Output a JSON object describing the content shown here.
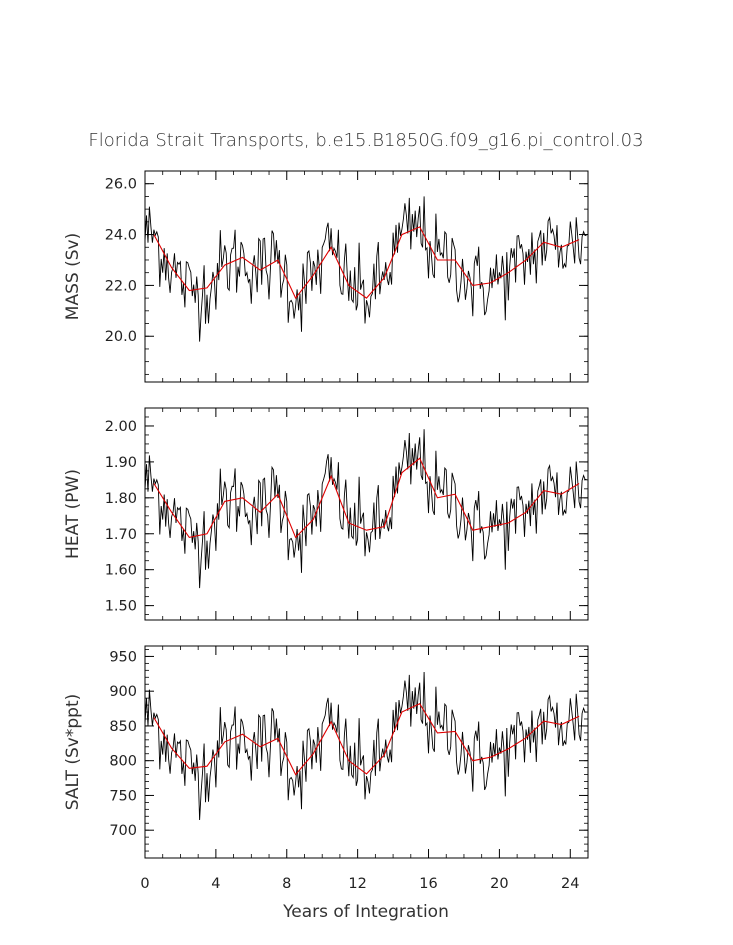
{
  "chart_data": {
    "type": "line",
    "title": "Florida Strait Transports, b.e15.B1850G.f09_g16.pi_control.03",
    "xlabel": "Years of Integration",
    "xlim": [
      0,
      25
    ],
    "xticks": [
      0,
      4,
      8,
      12,
      16,
      20,
      24
    ],
    "colors": {
      "raw": "#000000",
      "smoothed": "#e00000"
    },
    "panels": [
      {
        "ylabel": "MASS (Sv)",
        "ylim": [
          18.2,
          26.5
        ],
        "yticks": [
          20.0,
          22.0,
          24.0,
          26.0
        ],
        "yticklabels": [
          "20.0",
          "22.0",
          "24.0",
          "26.0"
        ],
        "minor_step": 0.5,
        "smoothed_x": [
          0.5,
          1.5,
          2.5,
          3.5,
          4.5,
          5.5,
          6.5,
          7.5,
          8.5,
          9.5,
          10.5,
          11.5,
          12.5,
          13.5,
          14.5,
          15.5,
          16.5,
          17.5,
          18.5,
          19.5,
          20.5,
          21.5,
          22.5,
          23.5,
          24.5
        ],
        "smoothed": [
          24.0,
          22.7,
          21.8,
          21.9,
          22.8,
          23.1,
          22.6,
          23.0,
          21.5,
          22.4,
          23.5,
          22.0,
          21.5,
          22.3,
          24.0,
          24.3,
          23.0,
          23.0,
          22.0,
          22.1,
          22.5,
          23.0,
          23.7,
          23.5,
          23.8
        ]
      },
      {
        "ylabel": "HEAT (PW)",
        "ylim": [
          1.46,
          2.05
        ],
        "yticks": [
          1.5,
          1.6,
          1.7,
          1.8,
          1.9,
          2.0
        ],
        "yticklabels": [
          "1.50",
          "1.60",
          "1.70",
          "1.80",
          "1.90",
          "2.00"
        ],
        "minor_step": 0.025,
        "smoothed_x": [
          0.5,
          1.5,
          2.5,
          3.5,
          4.5,
          5.5,
          6.5,
          7.5,
          8.5,
          9.5,
          10.5,
          11.5,
          12.5,
          13.5,
          14.5,
          15.5,
          16.5,
          17.5,
          18.5,
          19.5,
          20.5,
          21.5,
          22.5,
          23.5,
          24.5
        ],
        "smoothed": [
          1.84,
          1.76,
          1.69,
          1.7,
          1.79,
          1.8,
          1.76,
          1.81,
          1.69,
          1.74,
          1.86,
          1.73,
          1.71,
          1.72,
          1.87,
          1.91,
          1.8,
          1.81,
          1.71,
          1.72,
          1.73,
          1.76,
          1.82,
          1.81,
          1.84
        ]
      },
      {
        "ylabel": "SALT (Sv*ppt)",
        "ylim": [
          660,
          965
        ],
        "yticks": [
          700,
          750,
          800,
          850,
          900,
          950
        ],
        "yticklabels": [
          "700",
          "750",
          "800",
          "850",
          "900",
          "950"
        ],
        "minor_step": 10,
        "smoothed_x": [
          0.5,
          1.5,
          2.5,
          3.5,
          4.5,
          5.5,
          6.5,
          7.5,
          8.5,
          9.5,
          10.5,
          11.5,
          12.5,
          13.5,
          14.5,
          15.5,
          16.5,
          17.5,
          18.5,
          19.5,
          20.5,
          21.5,
          22.5,
          23.5,
          24.5
        ],
        "smoothed": [
          862,
          818,
          789,
          792,
          827,
          838,
          820,
          832,
          780,
          810,
          856,
          800,
          781,
          808,
          870,
          882,
          840,
          842,
          800,
          805,
          817,
          833,
          857,
          852,
          864
        ]
      }
    ]
  }
}
